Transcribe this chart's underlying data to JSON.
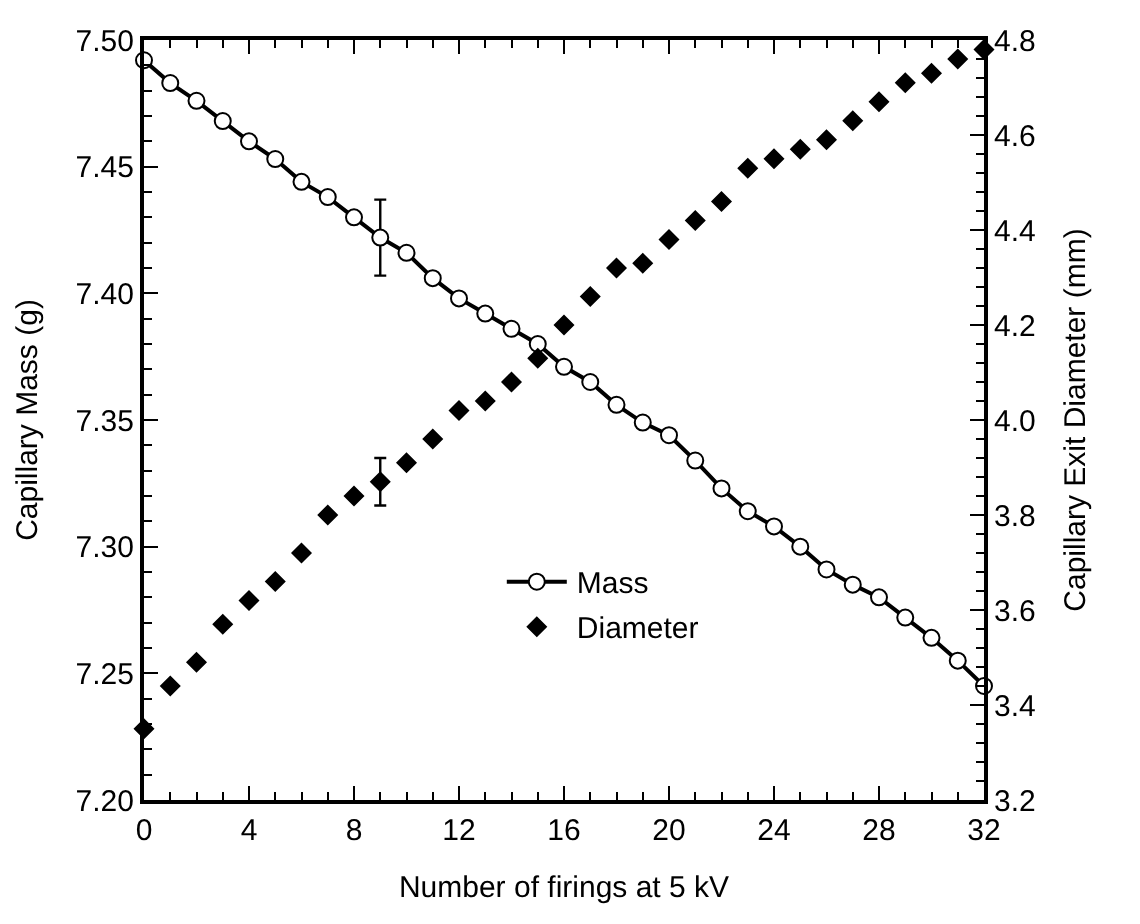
{
  "chart_data": {
    "type": "scatter",
    "xlabel": "Number of firings at 5 kV",
    "ylabel": "Capillary Mass (g)",
    "y2label": "Capillary Exit Diameter (mm)",
    "x": [
      0,
      1,
      2,
      3,
      4,
      5,
      6,
      7,
      8,
      9,
      10,
      11,
      12,
      13,
      14,
      15,
      16,
      17,
      18,
      19,
      20,
      21,
      22,
      23,
      24,
      25,
      26,
      27,
      28,
      29,
      30,
      31,
      32
    ],
    "series": [
      {
        "name": "Mass",
        "type": "line",
        "color": "#000000",
        "marker": "circle",
        "line_style": "solid",
        "values": [
          7.492,
          7.483,
          7.476,
          7.468,
          7.46,
          7.453,
          7.444,
          7.438,
          7.43,
          7.422,
          7.416,
          7.406,
          7.398,
          7.392,
          7.386,
          7.38,
          7.371,
          7.365,
          7.356,
          7.349,
          7.344,
          7.334,
          7.323,
          7.314,
          7.308,
          7.3,
          7.291,
          7.285,
          7.28,
          7.272,
          7.264,
          7.255,
          7.245
        ],
        "errors": [
          null,
          null,
          null,
          null,
          null,
          null,
          null,
          null,
          null,
          0.015,
          null,
          null,
          null,
          null,
          null,
          null,
          null,
          null,
          null,
          null,
          null,
          null,
          null,
          null,
          null,
          null,
          null,
          null,
          null,
          null,
          null,
          null,
          null
        ]
      },
      {
        "name": "Diameter",
        "axis": "y2",
        "color": "#000000",
        "marker": "diamond",
        "values": [
          3.35,
          3.44,
          3.49,
          3.57,
          3.62,
          3.66,
          3.72,
          3.8,
          3.84,
          3.87,
          3.91,
          3.96,
          4.02,
          4.04,
          4.08,
          4.13,
          4.2,
          4.26,
          4.32,
          4.33,
          4.38,
          4.42,
          4.46,
          4.53,
          4.55,
          4.57,
          4.59,
          4.63,
          4.67,
          4.71,
          4.73,
          4.76,
          4.78
        ],
        "errors": [
          null,
          null,
          null,
          null,
          null,
          null,
          null,
          null,
          null,
          0.05,
          null,
          null,
          null,
          null,
          null,
          null,
          null,
          null,
          null,
          null,
          null,
          null,
          null,
          null,
          null,
          null,
          null,
          null,
          null,
          null,
          null,
          null,
          null
        ]
      }
    ],
    "xlim": [
      0,
      32
    ],
    "xticks": [
      0,
      4,
      8,
      12,
      16,
      20,
      24,
      28,
      32
    ],
    "ylim": [
      7.2,
      7.5
    ],
    "yticks": [
      {
        "value": 7.2,
        "label": "7.20"
      },
      {
        "value": 7.25,
        "label": "7.25"
      },
      {
        "value": 7.3,
        "label": "7.30"
      },
      {
        "value": 7.35,
        "label": "7.35"
      },
      {
        "value": 7.4,
        "label": "7.40"
      },
      {
        "value": 7.45,
        "label": "7.45"
      },
      {
        "value": 7.5,
        "label": "7.50"
      }
    ],
    "y2lim": [
      3.2,
      4.8
    ],
    "y2ticks": [
      {
        "value": 3.2,
        "label": "3.2"
      },
      {
        "value": 3.4,
        "label": "3.4"
      },
      {
        "value": 3.6,
        "label": "3.6"
      },
      {
        "value": 3.8,
        "label": "3.8"
      },
      {
        "value": 4.0,
        "label": "4.0"
      },
      {
        "value": 4.2,
        "label": "4.2"
      },
      {
        "value": 4.4,
        "label": "4.4"
      },
      {
        "value": 4.6,
        "label": "4.6"
      },
      {
        "value": 4.8,
        "label": "4.8"
      }
    ],
    "grid": false,
    "legend": "bottom"
  }
}
